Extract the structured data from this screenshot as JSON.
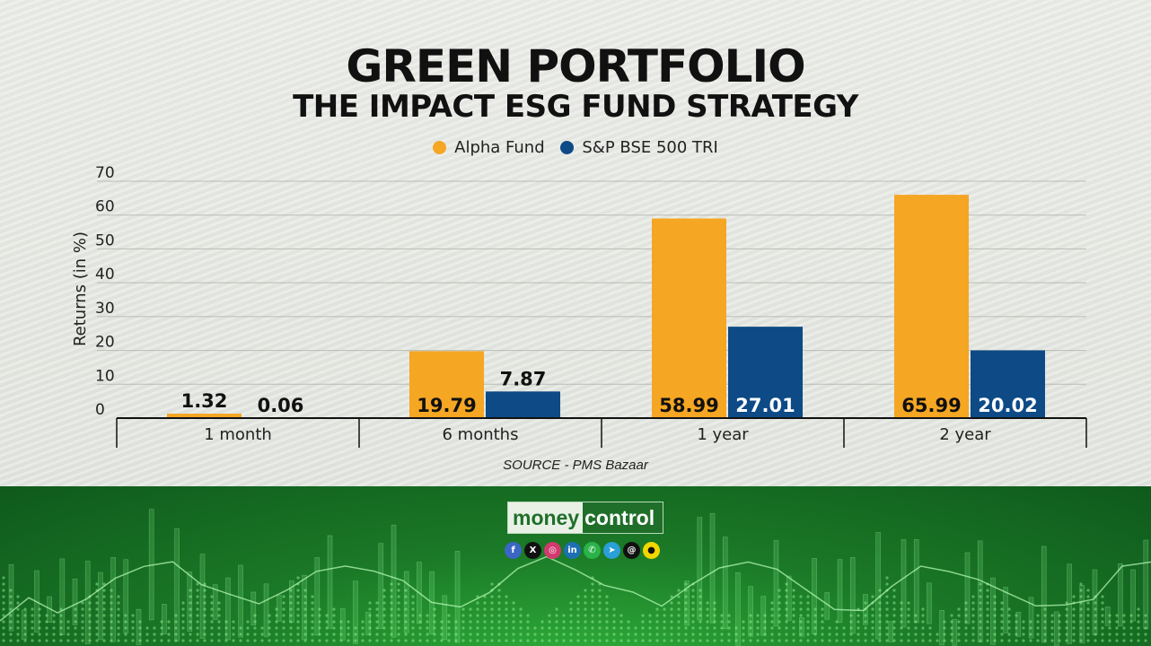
{
  "title": "GREEN PORTFOLIO",
  "subtitle": "THE IMPACT ESG FUND STRATEGY",
  "source": "SOURCE - PMS Bazaar",
  "colors": {
    "alpha": "#f5a623",
    "bse": "#0d4a86",
    "footer": "#1b7a27"
  },
  "chart_data": {
    "type": "bar",
    "title": "GREEN PORTFOLIO",
    "subtitle": "THE IMPACT ESG FUND STRATEGY",
    "categories": [
      "1 month",
      "6 months",
      "1 year",
      "2 year"
    ],
    "series": [
      {
        "name": "Alpha Fund",
        "color": "#f5a623",
        "values": [
          1.32,
          19.79,
          58.99,
          65.99
        ],
        "labels": [
          "1.32",
          "19.79",
          "58.99",
          "65.99"
        ]
      },
      {
        "name": "S&P BSE 500 TRI",
        "color": "#0d4a86",
        "values": [
          0.06,
          7.87,
          27.01,
          20.02
        ],
        "labels": [
          "0.06",
          "7.87",
          "27.01",
          "20.02"
        ]
      }
    ],
    "ylabel": "Returns (in %)",
    "xlabel": "",
    "ylim": [
      0,
      70
    ],
    "yticks": [
      "0",
      "10",
      "20",
      "30",
      "40",
      "50",
      "60",
      "70"
    ],
    "grid": true,
    "legend": "top-center"
  },
  "footer": {
    "brand_part1": "money",
    "brand_part2": "control",
    "social_icons": [
      {
        "icon": "facebook-icon",
        "glyph": "f",
        "color": "#3b66c4"
      },
      {
        "icon": "x-icon",
        "glyph": "X",
        "color": "#111111"
      },
      {
        "icon": "instagram-icon",
        "glyph": "◎",
        "color": "#d1396f"
      },
      {
        "icon": "linkedin-icon",
        "glyph": "in",
        "color": "#1f6fb3"
      },
      {
        "icon": "whatsapp-icon",
        "glyph": "✆",
        "color": "#2bb34a"
      },
      {
        "icon": "telegram-icon",
        "glyph": "➤",
        "color": "#2a9fd8"
      },
      {
        "icon": "threads-icon",
        "glyph": "@",
        "color": "#111111"
      },
      {
        "icon": "snapchat-icon",
        "glyph": "●",
        "color": "#f2d600"
      }
    ]
  }
}
